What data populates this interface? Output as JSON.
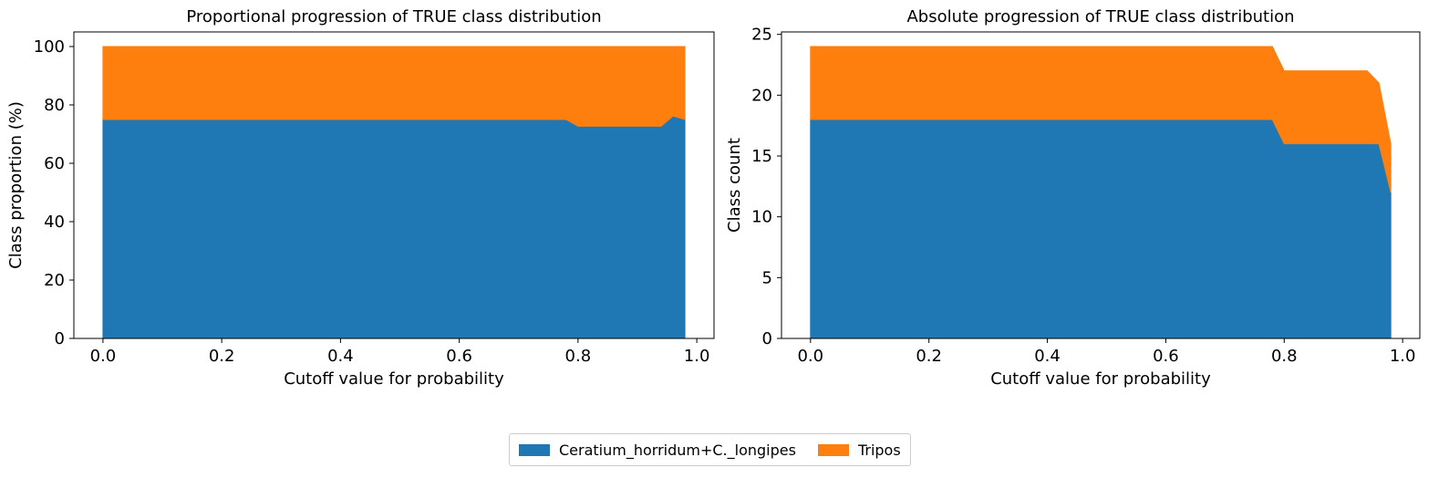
{
  "colors": {
    "series0": "#1f77b4",
    "series1": "#ff7f0e"
  },
  "legend": {
    "items": [
      {
        "label": "Ceratium_horridum+C._longipes",
        "color": "#1f77b4"
      },
      {
        "label": "Tripos",
        "color": "#ff7f0e"
      }
    ],
    "placement": "bottom-center"
  },
  "chart_data": [
    {
      "type": "area",
      "stacked": true,
      "title": "Proportional progression of TRUE class distribution",
      "xlabel": "Cutoff value for probability",
      "ylabel": "Class proportion (%)",
      "xlim": [
        -0.049,
        1.029
      ],
      "ylim": [
        0,
        105
      ],
      "xticks": [
        0.0,
        0.2,
        0.4,
        0.6,
        0.8,
        1.0
      ],
      "xtick_labels": [
        "0.0",
        "0.2",
        "0.4",
        "0.6",
        "0.8",
        "1.0"
      ],
      "yticks": [
        0,
        20,
        40,
        60,
        80,
        100
      ],
      "ytick_labels": [
        "0",
        "20",
        "40",
        "60",
        "80",
        "100"
      ],
      "grid": false,
      "x": [
        0.0,
        0.78,
        0.8,
        0.94,
        0.96,
        0.98
      ],
      "series": [
        {
          "name": "Ceratium_horridum+C._longipes",
          "values": [
            75,
            75,
            72.7,
            72.7,
            76.2,
            75
          ]
        },
        {
          "name": "Tripos",
          "values": [
            25,
            25,
            27.3,
            27.3,
            23.8,
            25
          ]
        }
      ]
    },
    {
      "type": "area",
      "stacked": true,
      "title": "Absolute progression of TRUE class distribution",
      "xlabel": "Cutoff value for probability",
      "ylabel": "Class count",
      "xlim": [
        -0.049,
        1.029
      ],
      "ylim": [
        0,
        25.2
      ],
      "xticks": [
        0.0,
        0.2,
        0.4,
        0.6,
        0.8,
        1.0
      ],
      "xtick_labels": [
        "0.0",
        "0.2",
        "0.4",
        "0.6",
        "0.8",
        "1.0"
      ],
      "yticks": [
        0,
        5,
        10,
        15,
        20,
        25
      ],
      "ytick_labels": [
        "0",
        "5",
        "10",
        "15",
        "20",
        "25"
      ],
      "grid": false,
      "x": [
        0.0,
        0.78,
        0.8,
        0.94,
        0.96,
        0.98
      ],
      "series": [
        {
          "name": "Ceratium_horridum+C._longipes",
          "values": [
            18,
            18,
            16,
            16,
            16,
            12
          ]
        },
        {
          "name": "Tripos",
          "values": [
            6,
            6,
            6,
            6,
            5,
            4
          ]
        }
      ]
    }
  ]
}
